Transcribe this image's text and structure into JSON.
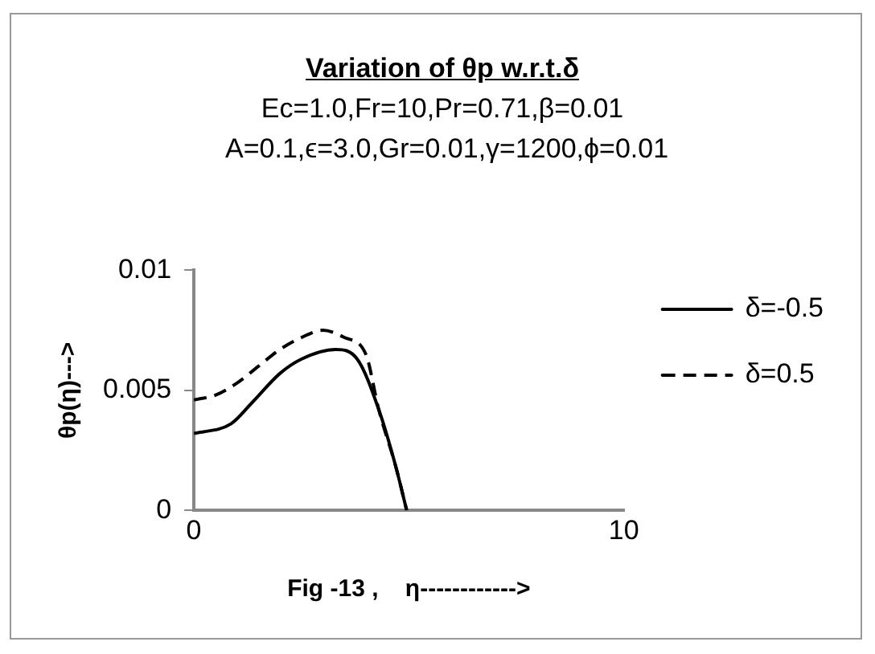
{
  "chart_data": {
    "type": "line",
    "title": "Variation of θp w.r.t.δ",
    "subtitle": "Ec=1.0,Fr=10,Pr=0.71,β=0.01 A=0.1,ϵ=3.0,Gr=0.01,γ=1200,ϕ=0.01",
    "xlabel": "Fig -13 ,    η------------>",
    "ylabel": "θp(η)--->",
    "xlim": [
      0,
      10
    ],
    "xticks": [
      0,
      10
    ],
    "ylim": [
      0,
      0.01
    ],
    "yticks": [
      0,
      0.005,
      0.01
    ],
    "grid": false,
    "legend": "right",
    "marker": "none",
    "series": [
      {
        "name": "δ=-0.5",
        "color": "#000000",
        "line_style": "solid",
        "x": [
          0,
          0.86,
          1.36,
          2,
          2.5,
          3.3,
          3.8,
          4.3,
          4.7,
          4.95
        ],
        "values": [
          0.0032,
          0.0036,
          0.0045,
          0.0057,
          0.0063,
          0.0067,
          0.0063,
          0.0042,
          0.0018,
          0
        ]
      },
      {
        "name": "δ=0.5",
        "color": "#000000",
        "line_style": "dashed",
        "x": [
          0,
          0.5,
          1,
          1.5,
          2,
          2.5,
          3,
          3.5,
          4,
          4.3,
          4.7,
          4.95
        ],
        "values": [
          0.0046,
          0.0048,
          0.0053,
          0.006,
          0.0067,
          0.0072,
          0.0075,
          0.0072,
          0.0065,
          0.0042,
          0.0018,
          0
        ]
      }
    ]
  }
}
